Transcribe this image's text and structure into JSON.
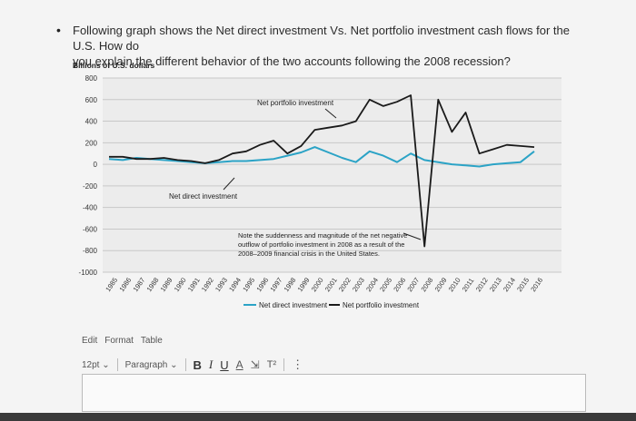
{
  "question": {
    "bullet": "•",
    "line1": "Following graph shows the Net direct investment Vs. Net portfolio investment cash flows for the U.S. How do",
    "line2": "you explain the different behavior of the two accounts following the 2008 recession?"
  },
  "editor": {
    "menu": [
      "Edit",
      "Format",
      "Table"
    ],
    "font_size": "12pt",
    "paragraph": "Paragraph",
    "bold": "B",
    "italic": "I",
    "underline": "U",
    "text_color": "A",
    "highlight": "⇲",
    "superscript": "T²",
    "more": "⋮"
  },
  "chart_data": {
    "type": "line",
    "ylabel": "Billions of U.S. dollars",
    "ylim": [
      -1000,
      800
    ],
    "yticks": [
      "800",
      "600",
      "400",
      "200",
      "0",
      "-200",
      "-400",
      "-600",
      "-800",
      "-1000"
    ],
    "x": [
      "1985",
      "1986",
      "1987",
      "1988",
      "1989",
      "1990",
      "1991",
      "1992",
      "1993",
      "1994",
      "1995",
      "1996",
      "1997",
      "1998",
      "1999",
      "2000",
      "2001",
      "2002",
      "2003",
      "2004",
      "2005",
      "2006",
      "2007",
      "2008",
      "2009",
      "2010",
      "2011",
      "2012",
      "2013",
      "2014",
      "2015",
      "2016"
    ],
    "series": [
      {
        "name": "Net direct investment",
        "color": "#2ba3c6",
        "values": [
          50,
          40,
          60,
          50,
          40,
          30,
          20,
          10,
          20,
          30,
          30,
          40,
          50,
          80,
          110,
          160,
          110,
          60,
          20,
          120,
          80,
          20,
          100,
          40,
          20,
          0,
          -10,
          -20,
          0,
          10,
          20,
          120
        ]
      },
      {
        "name": "Net portfolio investment",
        "color": "#1a1a1a",
        "values": [
          70,
          70,
          50,
          50,
          60,
          40,
          30,
          10,
          40,
          100,
          120,
          180,
          220,
          100,
          170,
          320,
          340,
          360,
          400,
          600,
          540,
          580,
          640,
          -760,
          600,
          300,
          480,
          100,
          140,
          180,
          170,
          160
        ]
      }
    ],
    "annotations": [
      {
        "text": "Net portfolio investment"
      },
      {
        "text": "Net direct investment"
      },
      {
        "lines": [
          "Note the suddenness and magnitude of the net negative",
          "outflow of portfolio investment in 2008 as a result of the",
          "2008–2009 financial crisis in the United States."
        ]
      }
    ],
    "legend": [
      "Net direct investment",
      "Net portfolio investment"
    ],
    "legend_position": "bottom"
  }
}
